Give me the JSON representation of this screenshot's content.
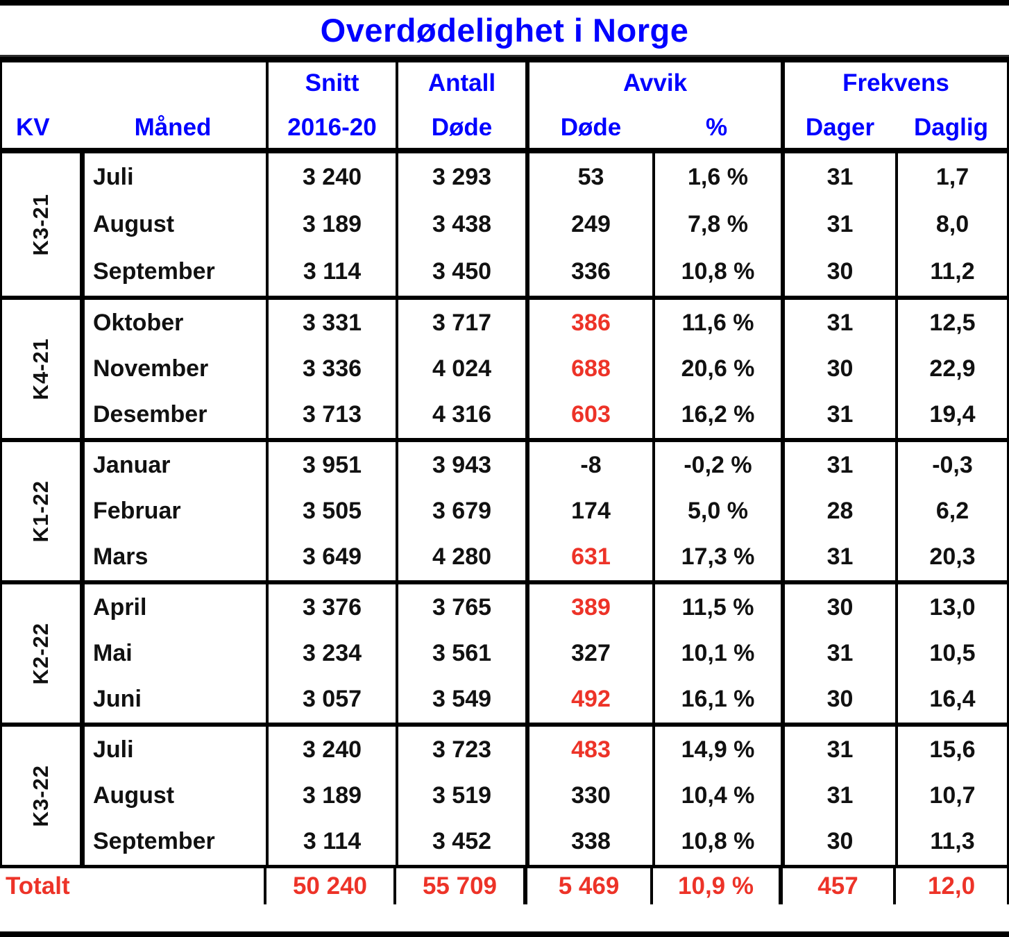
{
  "title": "Overdødelighet i Norge",
  "colors": {
    "blue": "#0000ff",
    "red": "#ed3328",
    "ink": "#111111",
    "line": "#000000"
  },
  "header": {
    "kv": "KV",
    "maaned": "Måned",
    "snitt_l1": "Snitt",
    "snitt_l2": "2016-20",
    "antall_l1": "Antall",
    "antall_l2": "Døde",
    "avvik": "Avvik",
    "avvik_dode": "Døde",
    "avvik_pct": "%",
    "frekvens": "Frekvens",
    "dager": "Dager",
    "daglig": "Daglig"
  },
  "quarters": [
    {
      "kv": "K3-21",
      "months": [
        {
          "name": "Juli",
          "snitt": "3 240",
          "antall": "3 293",
          "avvik_dode": "53",
          "avvik_pct": "1,6 %",
          "dager": "31",
          "daglig": "1,7"
        },
        {
          "name": "August",
          "snitt": "3 189",
          "antall": "3 438",
          "avvik_dode": "249",
          "avvik_pct": "7,8 %",
          "dager": "31",
          "daglig": "8,0"
        },
        {
          "name": "September",
          "snitt": "3 114",
          "antall": "3 450",
          "avvik_dode": "336",
          "avvik_pct": "10,8 %",
          "dager": "30",
          "daglig": "11,2"
        }
      ]
    },
    {
      "kv": "K4-21",
      "months": [
        {
          "name": "Oktober",
          "snitt": "3 331",
          "antall": "3 717",
          "avvik_dode": "386",
          "avvik_pct": "11,6 %",
          "dager": "31",
          "daglig": "12,5",
          "red": true
        },
        {
          "name": "November",
          "snitt": "3 336",
          "antall": "4 024",
          "avvik_dode": "688",
          "avvik_pct": "20,6 %",
          "dager": "30",
          "daglig": "22,9",
          "red": true
        },
        {
          "name": "Desember",
          "snitt": "3 713",
          "antall": "4 316",
          "avvik_dode": "603",
          "avvik_pct": "16,2 %",
          "dager": "31",
          "daglig": "19,4",
          "red": true
        }
      ]
    },
    {
      "kv": "K1-22",
      "months": [
        {
          "name": "Januar",
          "snitt": "3 951",
          "antall": "3 943",
          "avvik_dode": "-8",
          "avvik_pct": "-0,2 %",
          "dager": "31",
          "daglig": "-0,3"
        },
        {
          "name": "Februar",
          "snitt": "3 505",
          "antall": "3 679",
          "avvik_dode": "174",
          "avvik_pct": "5,0 %",
          "dager": "28",
          "daglig": "6,2"
        },
        {
          "name": "Mars",
          "snitt": "3 649",
          "antall": "4 280",
          "avvik_dode": "631",
          "avvik_pct": "17,3 %",
          "dager": "31",
          "daglig": "20,3",
          "red": true
        }
      ]
    },
    {
      "kv": "K2-22",
      "months": [
        {
          "name": "April",
          "snitt": "3 376",
          "antall": "3 765",
          "avvik_dode": "389",
          "avvik_pct": "11,5 %",
          "dager": "30",
          "daglig": "13,0",
          "red": true
        },
        {
          "name": "Mai",
          "snitt": "3 234",
          "antall": "3 561",
          "avvik_dode": "327",
          "avvik_pct": "10,1 %",
          "dager": "31",
          "daglig": "10,5"
        },
        {
          "name": "Juni",
          "snitt": "3 057",
          "antall": "3 549",
          "avvik_dode": "492",
          "avvik_pct": "16,1 %",
          "dager": "30",
          "daglig": "16,4",
          "red": true
        }
      ]
    },
    {
      "kv": "K3-22",
      "months": [
        {
          "name": "Juli",
          "snitt": "3 240",
          "antall": "3 723",
          "avvik_dode": "483",
          "avvik_pct": "14,9 %",
          "dager": "31",
          "daglig": "15,6",
          "red": true
        },
        {
          "name": "August",
          "snitt": "3 189",
          "antall": "3 519",
          "avvik_dode": "330",
          "avvik_pct": "10,4 %",
          "dager": "31",
          "daglig": "10,7"
        },
        {
          "name": "September",
          "snitt": "3 114",
          "antall": "3 452",
          "avvik_dode": "338",
          "avvik_pct": "10,8 %",
          "dager": "30",
          "daglig": "11,3"
        }
      ]
    }
  ],
  "total": {
    "label": "Totalt",
    "snitt": "50 240",
    "antall": "55 709",
    "avvik_dode": "5 469",
    "avvik_pct": "10,9 %",
    "dager": "457",
    "daglig": "12,0"
  },
  "chart_data": {
    "type": "table",
    "title": "Overdødelighet i Norge",
    "columns": [
      "KV",
      "Måned",
      "Snitt 2016-20",
      "Antall Døde",
      "Avvik Døde",
      "Avvik %",
      "Frekvens Dager",
      "Frekvens Daglig"
    ],
    "rows": [
      [
        "K3-21",
        "Juli",
        3240,
        3293,
        53,
        1.6,
        31,
        1.7
      ],
      [
        "K3-21",
        "August",
        3189,
        3438,
        249,
        7.8,
        31,
        8.0
      ],
      [
        "K3-21",
        "September",
        3114,
        3450,
        336,
        10.8,
        30,
        11.2
      ],
      [
        "K4-21",
        "Oktober",
        3331,
        3717,
        386,
        11.6,
        31,
        12.5
      ],
      [
        "K4-21",
        "November",
        3336,
        4024,
        688,
        20.6,
        30,
        22.9
      ],
      [
        "K4-21",
        "Desember",
        3713,
        4316,
        603,
        16.2,
        31,
        19.4
      ],
      [
        "K1-22",
        "Januar",
        3951,
        3943,
        -8,
        -0.2,
        31,
        -0.3
      ],
      [
        "K1-22",
        "Februar",
        3505,
        3679,
        174,
        5.0,
        28,
        6.2
      ],
      [
        "K1-22",
        "Mars",
        3649,
        4280,
        631,
        17.3,
        31,
        20.3
      ],
      [
        "K2-22",
        "April",
        3376,
        3765,
        389,
        11.5,
        30,
        13.0
      ],
      [
        "K2-22",
        "Mai",
        3234,
        3561,
        327,
        10.1,
        31,
        10.5
      ],
      [
        "K2-22",
        "Juni",
        3057,
        3549,
        492,
        16.1,
        30,
        16.4
      ],
      [
        "K3-22",
        "Juli",
        3240,
        3723,
        483,
        14.9,
        31,
        15.6
      ],
      [
        "K3-22",
        "August",
        3189,
        3519,
        330,
        10.4,
        31,
        10.7
      ],
      [
        "K3-22",
        "September",
        3114,
        3452,
        338,
        10.8,
        30,
        11.3
      ]
    ],
    "total_row": [
      "Totalt",
      "",
      50240,
      55709,
      5469,
      10.9,
      457,
      12.0
    ],
    "red_highlight_note": "Avvik Døde values 386, 688, 603, 631, 389, 492, 483 and the entire Totalt row are red"
  }
}
